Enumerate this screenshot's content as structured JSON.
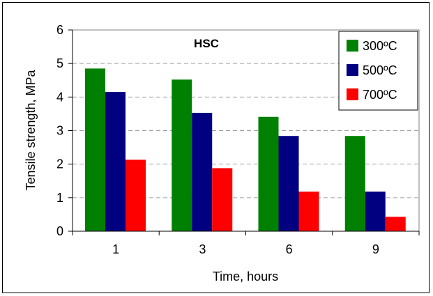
{
  "chart_data": {
    "type": "bar",
    "title": "HSC",
    "xlabel": "Time, hours",
    "ylabel": "Tensile strength, MPa",
    "categories": [
      "1",
      "3",
      "6",
      "9"
    ],
    "ylim": [
      0,
      6
    ],
    "yticks": [
      "0",
      "1",
      "2",
      "3",
      "4",
      "5",
      "6"
    ],
    "grid": true,
    "legend_position": "top-right",
    "series": [
      {
        "name": "300ºC",
        "color": "#008000",
        "values": [
          4.85,
          4.52,
          3.41,
          2.84
        ]
      },
      {
        "name": "500ºC",
        "color": "#000080",
        "values": [
          4.15,
          3.53,
          2.84,
          1.18
        ]
      },
      {
        "name": "700ºC",
        "color": "#ff0000",
        "values": [
          2.13,
          1.88,
          1.18,
          0.43
        ]
      }
    ]
  }
}
